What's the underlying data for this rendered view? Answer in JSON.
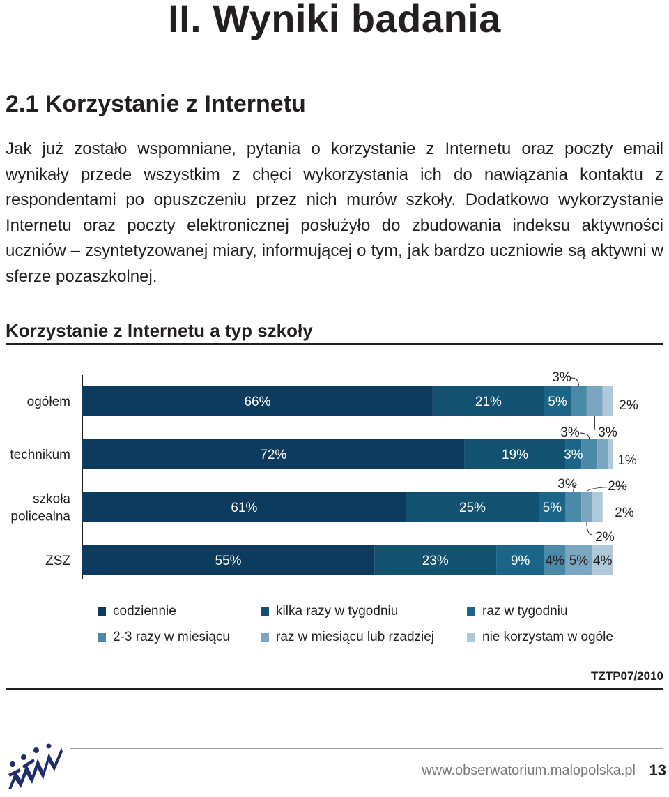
{
  "page": {
    "title": "II. Wyniki badania",
    "section_heading": "2.1 Korzystanie z Internetu",
    "body_text": "Jak już zostało wspomniane, pytania o korzystanie z Internetu oraz poczty email wynikały przede wszystkim z chęci wykorzystania ich do nawiązania kontaktu z respondentami po opuszczeniu przez nich murów szkoły. Dodatkowo wykorzystanie Internetu oraz poczty elektronicznej posłużyło do zbudowania indeksu aktywności uczniów – zsyntetyzowanej miary, informującej o tym, jak bardzo uczniowie są aktywni w sferze pozaszkolnej.",
    "source": "TZTP07/2010",
    "footer_url": "www.obserwatorium.malopolska.pl",
    "page_number": "13"
  },
  "chart_data": {
    "type": "bar",
    "orientation": "horizontal",
    "stacked": true,
    "title": "Korzystanie z Internetu a typ szkoły",
    "categories": [
      "ogółem",
      "technikum",
      "szkoła policealna",
      "ZSZ"
    ],
    "category_lines": [
      [
        "ogółem"
      ],
      [
        "technikum"
      ],
      [
        "szkoła",
        "policealna"
      ],
      [
        "ZSZ"
      ]
    ],
    "xlim": [
      0,
      100
    ],
    "unit": "%",
    "legend_position": "bottom",
    "series": [
      {
        "name": "codziennie",
        "color": "#0d3b5e",
        "values": [
          66,
          72,
          61,
          55
        ]
      },
      {
        "name": "kilka razy w tygodniu",
        "color": "#135171",
        "values": [
          21,
          19,
          25,
          23
        ]
      },
      {
        "name": "raz w tygodniu",
        "color": "#1b6688",
        "values": [
          5,
          3,
          5,
          9
        ]
      },
      {
        "name": "2-3 razy w miesiącu",
        "color": "#4a89a8",
        "values": [
          3,
          3,
          3,
          4
        ]
      },
      {
        "name": "raz w miesiącu lub rzadziej",
        "color": "#7ba6c1",
        "values": [
          3,
          2,
          2,
          5
        ]
      },
      {
        "name": "nie korzystam w ogóle",
        "color": "#afc8da",
        "values": [
          2,
          1,
          2,
          4
        ]
      }
    ]
  }
}
